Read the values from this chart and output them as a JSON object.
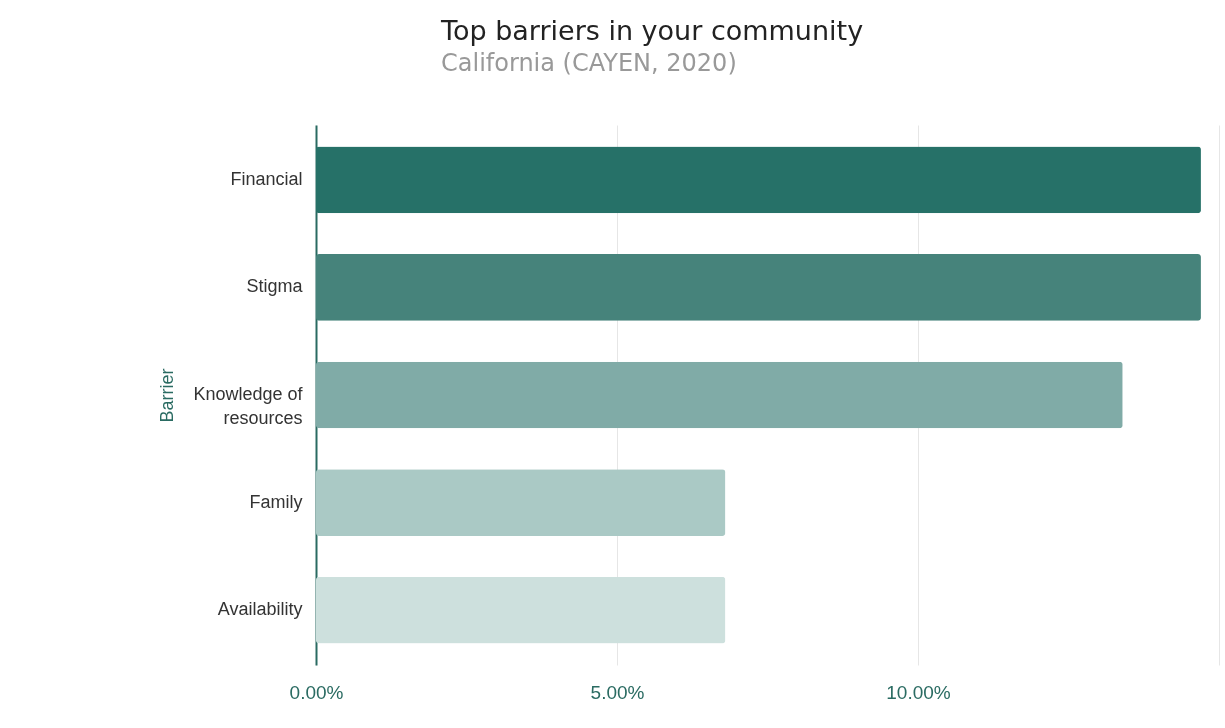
{
  "chart_data": {
    "type": "bar",
    "orientation": "horizontal",
    "title": "Top barriers in your community",
    "subtitle": "California (CAYEN, 2020)",
    "ylabel": "Barrier",
    "categories": [
      "Financial",
      "Stigma",
      "Knowledge of resources",
      "Family",
      "Availability"
    ],
    "values": [
      14.7,
      14.7,
      13.4,
      6.8,
      6.8
    ],
    "colors": [
      "#267168",
      "#46837b",
      "#80aba7",
      "#aac9c5",
      "#cde0dd"
    ],
    "xlim": [
      0,
      15
    ],
    "xticks": [
      {
        "value": 0,
        "label": "0.00%"
      },
      {
        "value": 5,
        "label": "5.00%"
      },
      {
        "value": 10,
        "label": "10.00%"
      },
      {
        "value": 15,
        "label": null
      }
    ],
    "grid": "x"
  }
}
